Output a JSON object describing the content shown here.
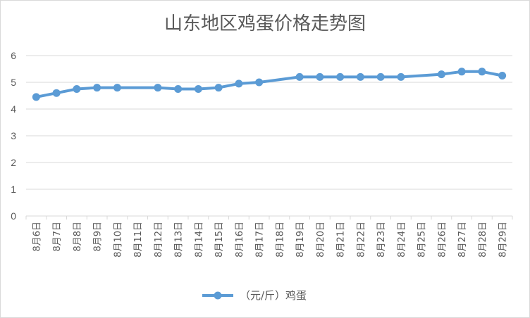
{
  "chart_data": {
    "type": "line",
    "title": "山东地区鸡蛋价格走势图",
    "xlabel": "",
    "ylabel": "",
    "ylim": [
      0,
      6
    ],
    "yticks": [
      0,
      1,
      2,
      3,
      4,
      5,
      6
    ],
    "grid": true,
    "legend_position": "bottom",
    "colors": {
      "series": "#5b9bd5",
      "grid": "#d9d9d9",
      "text": "#595959"
    },
    "categories": [
      "8月6日",
      "8月7日",
      "8月8日",
      "8月9日",
      "8月10日",
      "8月11日",
      "8月12日",
      "8月13日",
      "8月14日",
      "8月15日",
      "8月16日",
      "8月17日",
      "8月18日",
      "8月19日",
      "8月20日",
      "8月21日",
      "8月22日",
      "8月23日",
      "8月24日",
      "8月25日",
      "8月26日",
      "8月27日",
      "8月28日",
      "8月29日"
    ],
    "series": [
      {
        "name": "（元/斤）鸡蛋",
        "values": [
          4.45,
          4.6,
          4.75,
          4.8,
          4.8,
          null,
          4.8,
          4.75,
          4.75,
          4.8,
          4.95,
          5.0,
          null,
          5.2,
          5.2,
          5.2,
          5.2,
          5.2,
          5.2,
          null,
          5.3,
          5.4,
          5.4,
          5.25
        ]
      }
    ]
  }
}
